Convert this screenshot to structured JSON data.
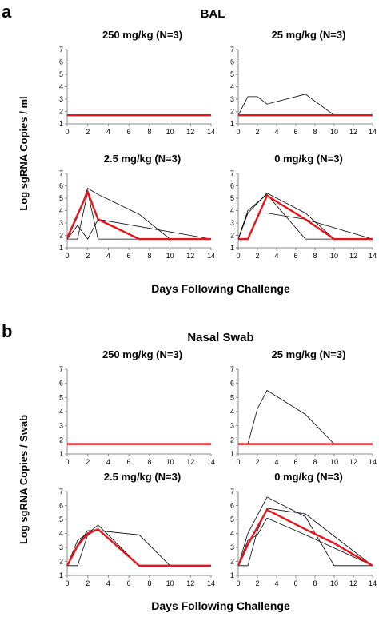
{
  "panels": [
    {
      "letter": "a",
      "title": "BAL",
      "ylabel": "Log sgRNA Copies / ml",
      "xlabel": "Days Following Challenge"
    },
    {
      "letter": "b",
      "title": "Nasal Swab",
      "ylabel": "Log sgRNA Copies / Swab",
      "xlabel": "Days Following Challenge"
    }
  ],
  "colors": {
    "individual": "#000000",
    "mean": "#e8141b",
    "axis": "#8c8c8c"
  },
  "chart_data": [
    {
      "type": "line",
      "panel": "a",
      "title": "250 mg/kg (N=3)",
      "xlim": [
        0,
        14
      ],
      "ylim": [
        1,
        7
      ],
      "xticks": [
        0,
        2,
        4,
        6,
        8,
        10,
        12,
        14
      ],
      "yticks": [
        1,
        2,
        3,
        4,
        5,
        6,
        7
      ],
      "series": [
        {
          "role": "mean",
          "x": [
            0,
            14
          ],
          "y": [
            1.7,
            1.7
          ]
        }
      ]
    },
    {
      "type": "line",
      "panel": "a",
      "title": "25 mg/kg (N=3)",
      "xlim": [
        0,
        14
      ],
      "ylim": [
        1,
        7
      ],
      "xticks": [
        0,
        2,
        4,
        6,
        8,
        10,
        12,
        14
      ],
      "yticks": [
        1,
        2,
        3,
        4,
        5,
        6,
        7
      ],
      "series": [
        {
          "role": "individual",
          "x": [
            0,
            1,
            2,
            3,
            7,
            10
          ],
          "y": [
            1.7,
            3.2,
            3.2,
            2.6,
            3.4,
            1.7
          ]
        },
        {
          "role": "mean",
          "x": [
            0,
            14
          ],
          "y": [
            1.7,
            1.7
          ]
        }
      ]
    },
    {
      "type": "line",
      "panel": "a",
      "title": "2.5 mg/kg (N=3)",
      "xlim": [
        0,
        14
      ],
      "ylim": [
        1,
        7
      ],
      "xticks": [
        0,
        2,
        4,
        6,
        8,
        10,
        12,
        14
      ],
      "yticks": [
        1,
        2,
        3,
        4,
        5,
        6,
        7
      ],
      "series": [
        {
          "role": "individual",
          "x": [
            0,
            1,
            2,
            3,
            7,
            10,
            14
          ],
          "y": [
            1.7,
            3.5,
            5.8,
            5.3,
            3.7,
            1.7,
            1.7
          ]
        },
        {
          "role": "individual",
          "x": [
            0,
            1,
            2,
            3,
            14
          ],
          "y": [
            1.7,
            1.7,
            5.5,
            1.7,
            1.7
          ]
        },
        {
          "role": "individual",
          "x": [
            0,
            1,
            2,
            3,
            14
          ],
          "y": [
            1.7,
            2.8,
            1.7,
            3.3,
            1.7
          ]
        },
        {
          "role": "mean",
          "x": [
            0,
            2,
            3,
            7,
            14
          ],
          "y": [
            1.8,
            5.5,
            3.3,
            1.7,
            1.7
          ]
        }
      ]
    },
    {
      "type": "line",
      "panel": "a",
      "title": "0 mg/kg (N=3)",
      "xlim": [
        0,
        14
      ],
      "ylim": [
        1,
        7
      ],
      "xticks": [
        0,
        2,
        4,
        6,
        8,
        10,
        12,
        14
      ],
      "yticks": [
        1,
        2,
        3,
        4,
        5,
        6,
        7
      ],
      "series": [
        {
          "role": "individual",
          "x": [
            0,
            1,
            3,
            7,
            10,
            14
          ],
          "y": [
            1.7,
            3.8,
            5.4,
            3.8,
            1.7,
            1.7
          ]
        },
        {
          "role": "individual",
          "x": [
            0,
            1,
            3,
            7,
            14
          ],
          "y": [
            1.7,
            3.8,
            3.8,
            3.3,
            1.7
          ]
        },
        {
          "role": "individual",
          "x": [
            0,
            1,
            3,
            7,
            14
          ],
          "y": [
            1.7,
            4.0,
            5.3,
            1.7,
            1.7
          ]
        },
        {
          "role": "mean",
          "x": [
            0,
            1,
            3,
            7,
            10,
            14
          ],
          "y": [
            1.7,
            1.7,
            5.2,
            3.3,
            1.7,
            1.7
          ]
        }
      ]
    },
    {
      "type": "line",
      "panel": "b",
      "title": "250 mg/kg (N=3)",
      "xlim": [
        0,
        14
      ],
      "ylim": [
        1,
        7
      ],
      "xticks": [
        0,
        2,
        4,
        6,
        8,
        10,
        12,
        14
      ],
      "yticks": [
        1,
        2,
        3,
        4,
        5,
        6,
        7
      ],
      "series": [
        {
          "role": "mean",
          "x": [
            0,
            14
          ],
          "y": [
            1.7,
            1.7
          ]
        }
      ]
    },
    {
      "type": "line",
      "panel": "b",
      "title": "25 mg/kg (N=3)",
      "xlim": [
        0,
        14
      ],
      "ylim": [
        1,
        7
      ],
      "xticks": [
        0,
        2,
        4,
        6,
        8,
        10,
        12,
        14
      ],
      "yticks": [
        1,
        2,
        3,
        4,
        5,
        6,
        7
      ],
      "series": [
        {
          "role": "individual",
          "x": [
            0,
            1,
            2,
            3,
            7,
            10,
            14
          ],
          "y": [
            1.7,
            1.7,
            4.2,
            5.5,
            3.8,
            1.7,
            1.7
          ]
        },
        {
          "role": "mean",
          "x": [
            0,
            14
          ],
          "y": [
            1.7,
            1.7
          ]
        }
      ]
    },
    {
      "type": "line",
      "panel": "b",
      "title": "2.5 mg/kg (N=3)",
      "xlim": [
        0,
        14
      ],
      "ylim": [
        1,
        7
      ],
      "xticks": [
        0,
        2,
        4,
        6,
        8,
        10,
        12,
        14
      ],
      "yticks": [
        1,
        2,
        3,
        4,
        5,
        6,
        7
      ],
      "series": [
        {
          "role": "individual",
          "x": [
            0,
            1,
            2,
            3,
            7,
            10,
            14
          ],
          "y": [
            1.7,
            3.2,
            4.2,
            4.2,
            3.9,
            1.7,
            1.7
          ]
        },
        {
          "role": "individual",
          "x": [
            0,
            1,
            2,
            3,
            7,
            14
          ],
          "y": [
            1.7,
            3.5,
            4.0,
            4.6,
            1.7,
            1.7
          ]
        },
        {
          "role": "individual",
          "x": [
            0,
            1,
            2,
            3,
            7,
            14
          ],
          "y": [
            1.7,
            1.7,
            3.9,
            4.3,
            1.7,
            1.7
          ]
        },
        {
          "role": "mean",
          "x": [
            0,
            1,
            2,
            3,
            7,
            14
          ],
          "y": [
            1.7,
            3.1,
            4.0,
            4.3,
            1.7,
            1.7
          ]
        }
      ]
    },
    {
      "type": "line",
      "panel": "b",
      "title": "0 mg/kg (N=3)",
      "xlim": [
        0,
        14
      ],
      "ylim": [
        1,
        7
      ],
      "xticks": [
        0,
        2,
        4,
        6,
        8,
        10,
        12,
        14
      ],
      "yticks": [
        1,
        2,
        3,
        4,
        5,
        6,
        7
      ],
      "series": [
        {
          "role": "individual",
          "x": [
            0,
            1,
            2,
            3,
            7,
            10,
            14
          ],
          "y": [
            1.7,
            4.0,
            5.3,
            6.6,
            5.2,
            1.7,
            1.7
          ]
        },
        {
          "role": "individual",
          "x": [
            0,
            1,
            2,
            3,
            7,
            10,
            14
          ],
          "y": [
            1.7,
            1.7,
            4.2,
            5.8,
            5.4,
            3.8,
            1.7
          ]
        },
        {
          "role": "individual",
          "x": [
            0,
            1,
            2,
            3,
            7,
            14
          ],
          "y": [
            1.7,
            3.5,
            3.9,
            5.1,
            3.9,
            1.7
          ]
        },
        {
          "role": "mean",
          "x": [
            0,
            1,
            3,
            7,
            10,
            14
          ],
          "y": [
            1.7,
            3.2,
            5.7,
            4.3,
            3.3,
            1.7
          ]
        }
      ]
    }
  ]
}
